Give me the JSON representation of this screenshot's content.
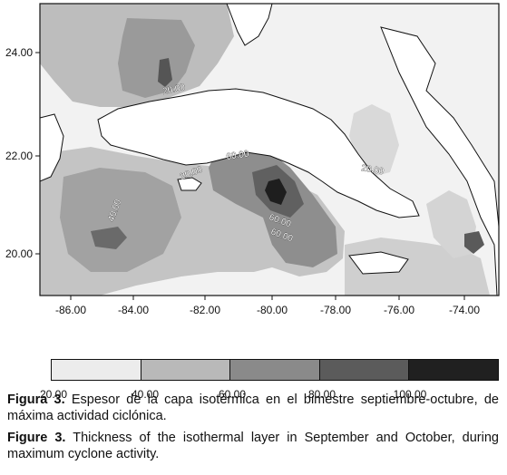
{
  "map": {
    "x_ticks": [
      "-86.00",
      "-84.00",
      "-82.00",
      "-80.00",
      "-78.00",
      "-76.00",
      "-74.00"
    ],
    "y_ticks": [
      "24.00",
      "22.00",
      "20.00"
    ],
    "contour_labels": [
      "20.00",
      "60.00",
      "40.00",
      "20.00",
      "60.00",
      "60.00",
      "20.00"
    ]
  },
  "legend": {
    "ticks": [
      "20.00",
      "40.00",
      "60.00",
      "80.00",
      "100.00"
    ],
    "colors": [
      "#ececec",
      "#b9b9b9",
      "#8a8a8a",
      "#5b5b5b",
      "#202020"
    ]
  },
  "caption_es": {
    "label": "Figura 3.",
    "text": " Espesor de la capa isotérmica en el bimestre septiembre-octubre, de máxima actividad ciclónica."
  },
  "caption_en": {
    "label": "Figure 3.",
    "text": " Thickness of the isothermal layer in September and October, during maximum cyclone activity."
  }
}
